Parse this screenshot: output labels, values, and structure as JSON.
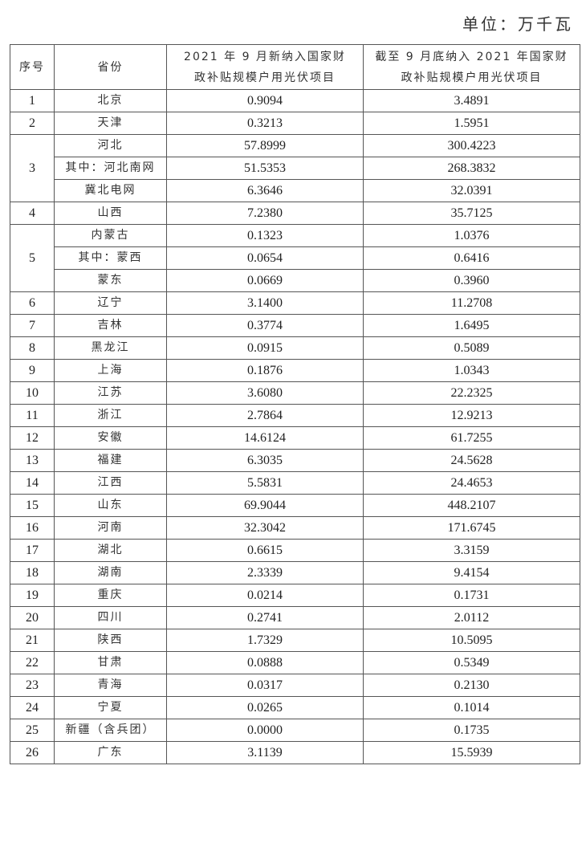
{
  "unit_label": "单位：万千瓦",
  "table": {
    "headers": [
      "序号",
      "省份",
      "2021 年 9 月新纳入国家财政补贴规模户用光伏项目",
      "截至 9 月底纳入 2021 年国家财政补贴规模户用光伏项目"
    ],
    "groups": [
      {
        "seq": "1",
        "rows": [
          [
            "北京",
            "0.9094",
            "3.4891"
          ]
        ]
      },
      {
        "seq": "2",
        "rows": [
          [
            "天津",
            "0.3213",
            "1.5951"
          ]
        ]
      },
      {
        "seq": "3",
        "rows": [
          [
            "河北",
            "57.8999",
            "300.4223"
          ],
          [
            "其中：河北南网",
            "51.5353",
            "268.3832"
          ],
          [
            "冀北电网",
            "6.3646",
            "32.0391"
          ]
        ]
      },
      {
        "seq": "4",
        "rows": [
          [
            "山西",
            "7.2380",
            "35.7125"
          ]
        ]
      },
      {
        "seq": "5",
        "rows": [
          [
            "内蒙古",
            "0.1323",
            "1.0376"
          ],
          [
            "其中：蒙西",
            "0.0654",
            "0.6416"
          ],
          [
            "蒙东",
            "0.0669",
            "0.3960"
          ]
        ]
      },
      {
        "seq": "6",
        "rows": [
          [
            "辽宁",
            "3.1400",
            "11.2708"
          ]
        ]
      },
      {
        "seq": "7",
        "rows": [
          [
            "吉林",
            "0.3774",
            "1.6495"
          ]
        ]
      },
      {
        "seq": "8",
        "rows": [
          [
            "黑龙江",
            "0.0915",
            "0.5089"
          ]
        ]
      },
      {
        "seq": "9",
        "rows": [
          [
            "上海",
            "0.1876",
            "1.0343"
          ]
        ]
      },
      {
        "seq": "10",
        "rows": [
          [
            "江苏",
            "3.6080",
            "22.2325"
          ]
        ]
      },
      {
        "seq": "11",
        "rows": [
          [
            "浙江",
            "2.7864",
            "12.9213"
          ]
        ]
      },
      {
        "seq": "12",
        "rows": [
          [
            "安徽",
            "14.6124",
            "61.7255"
          ]
        ]
      },
      {
        "seq": "13",
        "rows": [
          [
            "福建",
            "6.3035",
            "24.5628"
          ]
        ]
      },
      {
        "seq": "14",
        "rows": [
          [
            "江西",
            "5.5831",
            "24.4653"
          ]
        ]
      },
      {
        "seq": "15",
        "rows": [
          [
            "山东",
            "69.9044",
            "448.2107"
          ]
        ]
      },
      {
        "seq": "16",
        "rows": [
          [
            "河南",
            "32.3042",
            "171.6745"
          ]
        ]
      },
      {
        "seq": "17",
        "rows": [
          [
            "湖北",
            "0.6615",
            "3.3159"
          ]
        ]
      },
      {
        "seq": "18",
        "rows": [
          [
            "湖南",
            "2.3339",
            "9.4154"
          ]
        ]
      },
      {
        "seq": "19",
        "rows": [
          [
            "重庆",
            "0.0214",
            "0.1731"
          ]
        ]
      },
      {
        "seq": "20",
        "rows": [
          [
            "四川",
            "0.2741",
            "2.0112"
          ]
        ]
      },
      {
        "seq": "21",
        "rows": [
          [
            "陕西",
            "1.7329",
            "10.5095"
          ]
        ]
      },
      {
        "seq": "22",
        "rows": [
          [
            "甘肃",
            "0.0888",
            "0.5349"
          ]
        ]
      },
      {
        "seq": "23",
        "rows": [
          [
            "青海",
            "0.0317",
            "0.2130"
          ]
        ]
      },
      {
        "seq": "24",
        "rows": [
          [
            "宁夏",
            "0.0265",
            "0.1014"
          ]
        ]
      },
      {
        "seq": "25",
        "rows": [
          [
            "新疆（含兵团）",
            "0.0000",
            "0.1735"
          ]
        ]
      },
      {
        "seq": "26",
        "rows": [
          [
            "广东",
            "3.1139",
            "15.5939"
          ]
        ]
      }
    ]
  }
}
